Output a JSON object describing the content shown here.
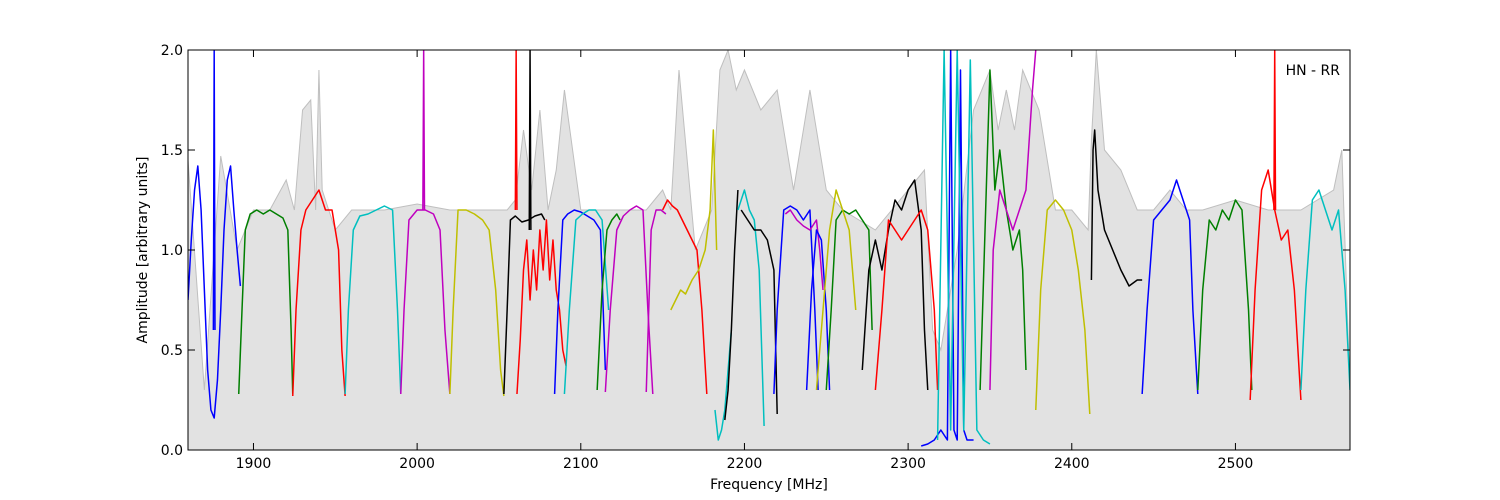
{
  "chart_data": {
    "type": "line",
    "title": "",
    "annotation": "HN - RR",
    "xlabel": "Frequency [MHz]",
    "ylabel": "Amplitude [arbitrary units]",
    "xlim": [
      1860,
      2570
    ],
    "ylim": [
      0,
      2.0
    ],
    "xticks": [
      1900,
      2000,
      2100,
      2200,
      2300,
      2400,
      2500
    ],
    "xtick_labels": [
      "1900",
      "2000",
      "2100",
      "2200",
      "2300",
      "2400",
      "2500"
    ],
    "yticks": [
      0.0,
      0.5,
      1.0,
      1.5,
      2.0
    ],
    "ytick_labels": [
      "0.0",
      "0.5",
      "1.0",
      "1.5",
      "2.0"
    ],
    "grid": false,
    "colors": {
      "blue": "#0000ff",
      "green": "#007f00",
      "red": "#ff0000",
      "cyan": "#00bfbf",
      "magenta": "#bf00bf",
      "yellow": "#bfbf00",
      "black": "#000000",
      "gray": "#bfbfbf"
    },
    "series": [
      {
        "color": "blue",
        "x": [
          1860,
          1862,
          1864,
          1866,
          1868,
          1870,
          1872,
          1874,
          1876,
          1878,
          1880,
          1882,
          1884,
          1886,
          1888,
          1890,
          1892
        ],
        "y": [
          0.75,
          1.05,
          1.3,
          1.42,
          1.2,
          0.8,
          0.4,
          0.2,
          0.16,
          0.35,
          0.7,
          1.1,
          1.35,
          1.42,
          1.2,
          1.0,
          0.82
        ]
      },
      {
        "color": "blue",
        "x": [
          1875.5,
          1876,
          1876.5
        ],
        "y": [
          0.6,
          2.0,
          0.6
        ]
      },
      {
        "color": "green",
        "x": [
          1891,
          1893,
          1895,
          1898,
          1902,
          1906,
          1910,
          1914,
          1918,
          1921,
          1923,
          1924
        ],
        "y": [
          0.28,
          0.7,
          1.1,
          1.18,
          1.2,
          1.18,
          1.2,
          1.18,
          1.16,
          1.1,
          0.6,
          0.28
        ]
      },
      {
        "color": "red",
        "x": [
          1924,
          1926,
          1929,
          1932,
          1936,
          1940,
          1942,
          1944,
          1948,
          1952,
          1954,
          1956
        ],
        "y": [
          0.27,
          0.7,
          1.1,
          1.2,
          1.25,
          1.3,
          1.25,
          1.2,
          1.2,
          1.0,
          0.5,
          0.27
        ]
      },
      {
        "color": "cyan",
        "x": [
          1956,
          1958,
          1961,
          1965,
          1970,
          1975,
          1980,
          1985,
          1988,
          1990
        ],
        "y": [
          0.28,
          0.7,
          1.1,
          1.17,
          1.18,
          1.2,
          1.22,
          1.2,
          0.7,
          0.28
        ]
      },
      {
        "color": "magenta",
        "x": [
          1990,
          1992,
          1995,
          2000,
          2005,
          2010,
          2014,
          2017,
          2020
        ],
        "y": [
          0.28,
          0.7,
          1.15,
          1.2,
          1.2,
          1.18,
          1.1,
          0.6,
          0.28
        ]
      },
      {
        "color": "magenta",
        "x": [
          2003.5,
          2004,
          2004.5
        ],
        "y": [
          1.2,
          2.0,
          1.2
        ]
      },
      {
        "color": "yellow",
        "x": [
          2020,
          2022,
          2025,
          2030,
          2035,
          2040,
          2044,
          2048,
          2051,
          2053
        ],
        "y": [
          0.28,
          0.7,
          1.2,
          1.2,
          1.18,
          1.15,
          1.1,
          0.8,
          0.4,
          0.27
        ]
      },
      {
        "color": "black",
        "x": [
          2053,
          2055,
          2057,
          2060,
          2064,
          2068,
          2072,
          2076,
          2078
        ],
        "y": [
          0.28,
          0.7,
          1.15,
          1.17,
          1.14,
          1.15,
          1.17,
          1.18,
          1.15
        ]
      },
      {
        "color": "red",
        "x": [
          2061,
          2063,
          2065,
          2067,
          2069,
          2071,
          2073,
          2075,
          2077,
          2079,
          2081,
          2083,
          2085,
          2087,
          2089,
          2091
        ],
        "y": [
          0.28,
          0.55,
          0.9,
          1.05,
          0.75,
          1.0,
          0.8,
          1.1,
          0.9,
          1.15,
          0.85,
          1.05,
          0.8,
          0.7,
          0.5,
          0.42
        ]
      },
      {
        "color": "red",
        "x": [
          2060,
          2060.5,
          2061
        ],
        "y": [
          1.2,
          2.0,
          1.2
        ]
      },
      {
        "color": "black",
        "x": [
          2068.5,
          2069,
          2069.5
        ],
        "y": [
          1.1,
          2.0,
          1.1
        ]
      },
      {
        "color": "blue",
        "x": [
          2084,
          2086,
          2089,
          2092,
          2096,
          2100,
          2104,
          2108,
          2112,
          2115
        ],
        "y": [
          0.28,
          0.7,
          1.15,
          1.18,
          1.2,
          1.19,
          1.17,
          1.15,
          1.1,
          0.4
        ]
      },
      {
        "color": "cyan",
        "x": [
          2090,
          2093,
          2097,
          2101,
          2105,
          2109,
          2113,
          2117
        ],
        "y": [
          0.28,
          0.7,
          1.15,
          1.18,
          1.2,
          1.2,
          1.15,
          0.7
        ]
      },
      {
        "color": "magenta",
        "x": [
          2115,
          2118,
          2122,
          2126,
          2130,
          2134,
          2138,
          2141,
          2144
        ],
        "y": [
          0.29,
          0.7,
          1.1,
          1.17,
          1.2,
          1.22,
          1.2,
          0.7,
          0.28
        ]
      },
      {
        "color": "green",
        "x": [
          2110,
          2113,
          2116,
          2119,
          2122,
          2124
        ],
        "y": [
          0.3,
          0.8,
          1.1,
          1.15,
          1.18,
          1.15
        ]
      },
      {
        "color": "magenta",
        "x": [
          2140,
          2143,
          2146,
          2149,
          2152
        ],
        "y": [
          0.29,
          1.1,
          1.2,
          1.2,
          1.18
        ]
      },
      {
        "color": "red",
        "x": [
          2150,
          2153,
          2156,
          2159,
          2162,
          2165,
          2168,
          2171,
          2174,
          2177
        ],
        "y": [
          1.2,
          1.25,
          1.22,
          1.2,
          1.15,
          1.1,
          1.05,
          1.0,
          0.7,
          0.28
        ]
      },
      {
        "color": "yellow",
        "x": [
          2155,
          2158,
          2161,
          2164,
          2168,
          2172,
          2176,
          2179,
          2181,
          2183
        ],
        "y": [
          0.7,
          0.75,
          0.8,
          0.78,
          0.85,
          0.9,
          1.0,
          1.2,
          1.6,
          1.0
        ]
      },
      {
        "color": "cyan",
        "x": [
          2182,
          2184,
          2186,
          2188,
          2190,
          2192
        ],
        "y": [
          0.2,
          0.05,
          0.1,
          0.2,
          0.4,
          0.6
        ]
      },
      {
        "color": "black",
        "x": [
          2188,
          2190,
          2192,
          2194,
          2196
        ],
        "y": [
          0.15,
          0.3,
          0.6,
          1.0,
          1.3
        ]
      },
      {
        "color": "cyan",
        "x": [
          2196,
          2198,
          2200,
          2203,
          2206,
          2209,
          2212
        ],
        "y": [
          1.2,
          1.25,
          1.3,
          1.2,
          1.15,
          0.9,
          0.12
        ]
      },
      {
        "color": "black",
        "x": [
          2198,
          2202,
          2206,
          2210,
          2214,
          2218,
          2220
        ],
        "y": [
          1.2,
          1.15,
          1.1,
          1.1,
          1.05,
          0.9,
          0.18
        ]
      },
      {
        "color": "blue",
        "x": [
          2218,
          2220,
          2224,
          2228,
          2232,
          2236,
          2240,
          2243,
          2245
        ],
        "y": [
          0.28,
          0.7,
          1.2,
          1.22,
          1.2,
          1.15,
          1.2,
          0.7,
          0.3
        ]
      },
      {
        "color": "magenta",
        "x": [
          2225,
          2228,
          2232,
          2236,
          2240,
          2244,
          2246,
          2248
        ],
        "y": [
          1.18,
          1.2,
          1.15,
          1.12,
          1.1,
          1.15,
          1.0,
          0.8
        ]
      },
      {
        "color": "blue",
        "x": [
          2238,
          2241,
          2244,
          2247,
          2250,
          2252
        ],
        "y": [
          0.3,
          0.8,
          1.1,
          1.05,
          0.7,
          0.3
        ]
      },
      {
        "color": "green",
        "x": [
          2250,
          2253,
          2256,
          2260,
          2264,
          2268,
          2272,
          2276,
          2278
        ],
        "y": [
          0.3,
          0.7,
          1.15,
          1.2,
          1.18,
          1.2,
          1.15,
          1.1,
          0.6
        ]
      },
      {
        "color": "yellow",
        "x": [
          2244,
          2248,
          2252,
          2256,
          2260,
          2264,
          2268
        ],
        "y": [
          0.3,
          0.7,
          1.1,
          1.3,
          1.2,
          1.1,
          0.7
        ]
      },
      {
        "color": "black",
        "x": [
          2272,
          2276,
          2280,
          2284,
          2288,
          2292,
          2296,
          2300,
          2304,
          2308,
          2310,
          2312
        ],
        "y": [
          0.4,
          0.9,
          1.05,
          0.9,
          1.1,
          1.25,
          1.2,
          1.3,
          1.35,
          1.1,
          0.6,
          0.3
        ]
      },
      {
        "color": "red",
        "x": [
          2280,
          2284,
          2288,
          2292,
          2296,
          2300,
          2304,
          2308,
          2312,
          2316,
          2318
        ],
        "y": [
          0.3,
          0.7,
          1.15,
          1.1,
          1.05,
          1.1,
          1.15,
          1.2,
          1.1,
          0.7,
          0.3
        ]
      },
      {
        "color": "blue",
        "x": [
          2308,
          2312,
          2316,
          2320,
          2324,
          2326,
          2328,
          2330,
          2332,
          2334,
          2336,
          2340
        ],
        "y": [
          0.02,
          0.03,
          0.05,
          0.1,
          0.05,
          2.0,
          0.1,
          0.05,
          1.9,
          0.1,
          0.05,
          0.05
        ]
      },
      {
        "color": "cyan",
        "x": [
          2318,
          2322,
          2326,
          2330,
          2334,
          2338,
          2342,
          2346,
          2350
        ],
        "y": [
          0.05,
          2.0,
          0.1,
          2.0,
          0.1,
          1.95,
          0.1,
          0.05,
          0.03
        ]
      },
      {
        "color": "green",
        "x": [
          2344,
          2347,
          2350,
          2353,
          2356,
          2360,
          2364,
          2368,
          2370,
          2372
        ],
        "y": [
          0.3,
          1.1,
          1.9,
          1.3,
          1.5,
          1.2,
          1.0,
          1.1,
          0.9,
          0.4
        ]
      },
      {
        "color": "magenta",
        "x": [
          2350,
          2352,
          2356,
          2360,
          2364,
          2368,
          2372,
          2376,
          2378
        ],
        "y": [
          0.3,
          1.0,
          1.3,
          1.2,
          1.1,
          1.2,
          1.3,
          1.8,
          2.0
        ]
      },
      {
        "color": "yellow",
        "x": [
          2378,
          2381,
          2385,
          2390,
          2395,
          2400,
          2404,
          2408,
          2411
        ],
        "y": [
          0.2,
          0.8,
          1.2,
          1.25,
          1.2,
          1.1,
          0.9,
          0.6,
          0.18
        ]
      },
      {
        "color": "black",
        "x": [
          2412,
          2413,
          2414,
          2416,
          2420,
          2425,
          2430,
          2435,
          2440,
          2443
        ],
        "y": [
          0.85,
          1.5,
          1.6,
          1.3,
          1.1,
          1.0,
          0.9,
          0.82,
          0.85,
          0.85
        ]
      },
      {
        "color": "blue",
        "x": [
          2443,
          2446,
          2450,
          2455,
          2460,
          2464,
          2468,
          2472,
          2474,
          2477
        ],
        "y": [
          0.28,
          0.7,
          1.15,
          1.2,
          1.25,
          1.35,
          1.25,
          1.15,
          0.7,
          0.28
        ]
      },
      {
        "color": "green",
        "x": [
          2477,
          2480,
          2484,
          2488,
          2492,
          2496,
          2500,
          2504,
          2508,
          2510
        ],
        "y": [
          0.3,
          0.8,
          1.15,
          1.1,
          1.2,
          1.15,
          1.25,
          1.2,
          0.7,
          0.3
        ]
      },
      {
        "color": "red",
        "x": [
          2509,
          2512,
          2516,
          2520,
          2524,
          2528,
          2532,
          2536,
          2540
        ],
        "y": [
          0.25,
          0.8,
          1.3,
          1.4,
          1.2,
          1.05,
          1.1,
          0.8,
          0.25
        ]
      },
      {
        "color": "red",
        "x": [
          2523.5,
          2524,
          2524.5
        ],
        "y": [
          1.2,
          2.0,
          1.2
        ]
      },
      {
        "color": "cyan",
        "x": [
          2540,
          2543,
          2547,
          2551,
          2555,
          2559,
          2563,
          2567,
          2570
        ],
        "y": [
          0.3,
          0.8,
          1.25,
          1.3,
          1.2,
          1.1,
          1.2,
          0.8,
          0.3
        ]
      }
    ],
    "envelope": {
      "color": "gray",
      "x": [
        1860,
        1870,
        1880,
        1890,
        1900,
        1910,
        1920,
        1925,
        1930,
        1935,
        1938,
        1940,
        1942,
        1946,
        1950,
        1960,
        1980,
        2000,
        2020,
        2040,
        2055,
        2060,
        2065,
        2070,
        2075,
        2080,
        2085,
        2090,
        2100,
        2110,
        2120,
        2140,
        2150,
        2155,
        2160,
        2170,
        2180,
        2185,
        2190,
        2195,
        2200,
        2210,
        2220,
        2230,
        2240,
        2250,
        2260,
        2280,
        2300,
        2310,
        2315,
        2320,
        2330,
        2340,
        2350,
        2355,
        2360,
        2365,
        2370,
        2375,
        2380,
        2390,
        2400,
        2410,
        2412,
        2415,
        2420,
        2430,
        2440,
        2450,
        2460,
        2470,
        2480,
        2500,
        2520,
        2540,
        2560,
        2565,
        2570
      ],
      "y": [
        1.45,
        0.3,
        1.47,
        1.0,
        1.2,
        1.2,
        1.35,
        1.2,
        1.7,
        1.75,
        1.2,
        1.9,
        1.3,
        1.2,
        1.1,
        1.2,
        1.2,
        1.23,
        1.2,
        1.2,
        1.2,
        1.25,
        1.6,
        1.3,
        1.7,
        1.2,
        1.4,
        1.8,
        1.2,
        1.2,
        1.2,
        1.2,
        1.3,
        1.2,
        1.9,
        1.0,
        1.2,
        1.9,
        2.0,
        1.8,
        1.9,
        1.7,
        1.8,
        1.3,
        1.8,
        1.3,
        1.2,
        1.1,
        1.3,
        1.4,
        0.6,
        0.5,
        1.0,
        1.7,
        1.9,
        1.6,
        1.8,
        1.6,
        1.9,
        1.8,
        1.7,
        1.2,
        1.2,
        1.1,
        1.55,
        2.0,
        1.5,
        1.4,
        1.2,
        1.2,
        1.3,
        1.2,
        1.2,
        1.25,
        1.2,
        1.2,
        1.3,
        1.5,
        0.3
      ]
    }
  }
}
